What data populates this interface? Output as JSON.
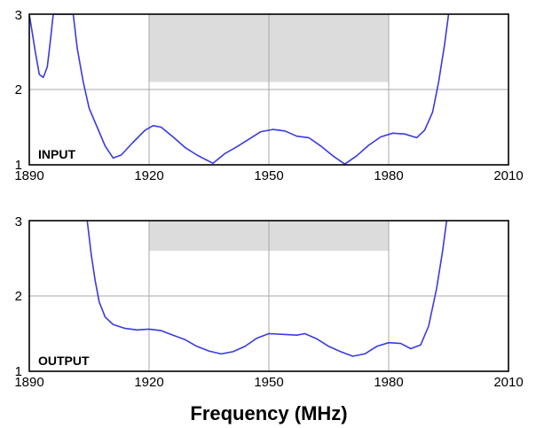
{
  "chart_data": [
    {
      "type": "line",
      "panel_label": "INPUT",
      "xlim": [
        1890,
        2010
      ],
      "ylim": [
        1,
        3
      ],
      "x_ticks": [
        "1890",
        "1920",
        "1950",
        "1980",
        "2010"
      ],
      "y_ticks": [
        "1",
        "2",
        "3"
      ],
      "grid": "x at 1920, 1950, 1980; y at 2",
      "spec_mask": {
        "x_range": [
          1920,
          1980
        ],
        "y_range": [
          2.1,
          3
        ]
      },
      "series": [
        {
          "color": "#3a3ae0",
          "x": [
            1890,
            1891.5,
            1892.5,
            1893.5,
            1894.5,
            1895.3,
            1896,
            1901,
            1902,
            1903.5,
            1905,
            1907,
            1909,
            1911,
            1913,
            1916,
            1919,
            1921,
            1923,
            1926,
            1929,
            1932,
            1936,
            1939,
            1942,
            1945,
            1948,
            1951,
            1954,
            1957,
            1960,
            1963,
            1966,
            1969,
            1972,
            1975,
            1978,
            1981,
            1984,
            1987,
            1989,
            1991,
            1992.5,
            1994,
            1995
          ],
          "y": [
            3,
            2.5,
            2.2,
            2.16,
            2.3,
            2.65,
            3,
            3,
            2.55,
            2.1,
            1.75,
            1.5,
            1.25,
            1.09,
            1.13,
            1.3,
            1.46,
            1.52,
            1.5,
            1.37,
            1.23,
            1.13,
            1.02,
            1.15,
            1.24,
            1.34,
            1.44,
            1.47,
            1.45,
            1.38,
            1.36,
            1.25,
            1.12,
            1.01,
            1.12,
            1.26,
            1.37,
            1.42,
            1.41,
            1.36,
            1.46,
            1.7,
            2.1,
            2.6,
            3
          ]
        }
      ]
    },
    {
      "type": "line",
      "panel_label": "OUTPUT",
      "xlim": [
        1890,
        2010
      ],
      "ylim": [
        1,
        3
      ],
      "x_ticks": [
        "1890",
        "1920",
        "1950",
        "1980",
        "2010"
      ],
      "y_ticks": [
        "1",
        "2",
        "3"
      ],
      "xlabel": "Frequency (MHz)",
      "grid": "x at 1920, 1950, 1980; y at 2",
      "spec_mask": {
        "x_range": [
          1920,
          1980
        ],
        "y_range": [
          2.6,
          3
        ]
      },
      "series": [
        {
          "color": "#3a3ae0",
          "x": [
            1904.5,
            1905.5,
            1906.5,
            1907.5,
            1909,
            1911,
            1914,
            1917,
            1920,
            1923,
            1926,
            1929,
            1932,
            1935,
            1938,
            1941,
            1944,
            1947,
            1950,
            1954,
            1957,
            1959,
            1962,
            1965,
            1968,
            1971,
            1974,
            1977,
            1980,
            1983,
            1985.5,
            1988,
            1990,
            1992,
            1993.5,
            1994.5
          ],
          "y": [
            3,
            2.55,
            2.2,
            1.92,
            1.72,
            1.62,
            1.57,
            1.55,
            1.56,
            1.54,
            1.48,
            1.42,
            1.33,
            1.27,
            1.23,
            1.26,
            1.33,
            1.44,
            1.5,
            1.49,
            1.48,
            1.5,
            1.43,
            1.33,
            1.26,
            1.2,
            1.23,
            1.33,
            1.38,
            1.37,
            1.3,
            1.35,
            1.6,
            2.1,
            2.6,
            3
          ]
        }
      ]
    }
  ]
}
